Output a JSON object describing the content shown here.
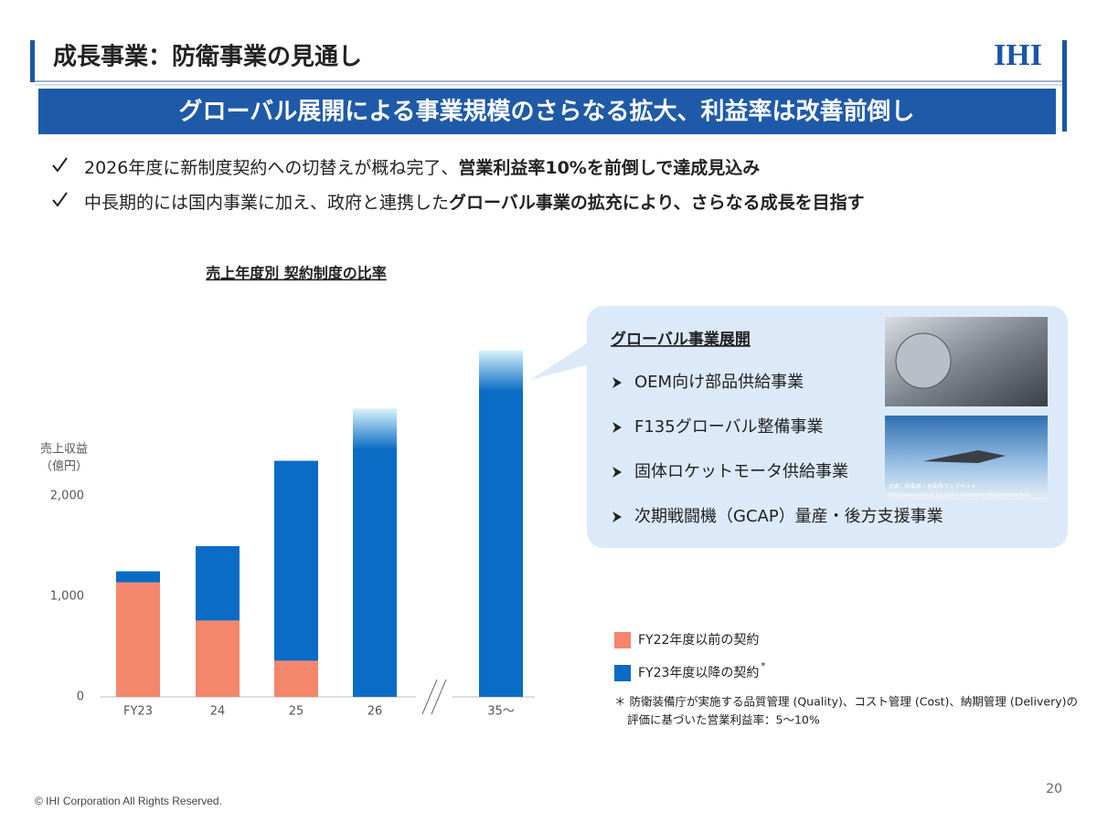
{
  "header": {
    "title": "成長事業：防衛事業の見通し",
    "logo": "IHI",
    "banner": "グローバル展開による事業規模のさらなる拡大、利益率は改善前倒し"
  },
  "bullets": [
    {
      "parts": [
        {
          "text": "2026年度に新制度契約への切替えが概ね完了、",
          "bold": false
        },
        {
          "text": "営業利益率10%を前倒しで達成見込み",
          "bold": true
        }
      ]
    },
    {
      "parts": [
        {
          "text": "中長期的には国内事業に加え、政府と連携した",
          "bold": false
        },
        {
          "text": "グローバル事業の拡充により、さらなる成長を目指す",
          "bold": true
        }
      ]
    }
  ],
  "chart_data": {
    "type": "stacked-bar",
    "title": "売上年度別 契約制度の比率",
    "y_label": [
      "売上収益",
      "（億円）"
    ],
    "categories": [
      "FY23",
      "24",
      "25",
      "26",
      "35～"
    ],
    "series": [
      {
        "name": "FY22年度以前の契約",
        "color": "#f4866c",
        "values": [
          1140,
          760,
          360,
          0,
          0
        ]
      },
      {
        "name": "FY23年度以降の契約",
        "color": "#0a6cc4",
        "values": [
          110,
          740,
          1990,
          2870,
          3450
        ],
        "fade_top": [
          false,
          false,
          false,
          true,
          true
        ]
      }
    ],
    "legend_note_mark": "*",
    "ylim": [
      0,
      3500
    ],
    "yticks": [
      0,
      {
        "value": 1000,
        "label": "1,000"
      },
      {
        "value": 2000,
        "label": "2,000"
      }
    ],
    "grid": false
  },
  "callout": {
    "title": "グローバル事業展開",
    "items": [
      "OEM向け部品供給事業",
      "F135グローバル整備事業",
      "固体ロケットモータ供給事業",
      "次期戦闘機（GCAP）量産・後方支援事業"
    ],
    "credit": "出典：防衛省・自衛隊ウェブサイト",
    "credit_url": "https://www.mod.go.jp/j/policy/defense/nextfighter/index.html"
  },
  "footnote": [
    "＊ 防衛装備庁が実施する品質管理 (Quality)、コスト管理 (Cost)、納期管理 (Delivery)の",
    "評価に基づいた営業利益率：5〜10%"
  ],
  "footer": {
    "copyright": "© IHI Corporation All Rights Reserved.",
    "page": "20"
  }
}
